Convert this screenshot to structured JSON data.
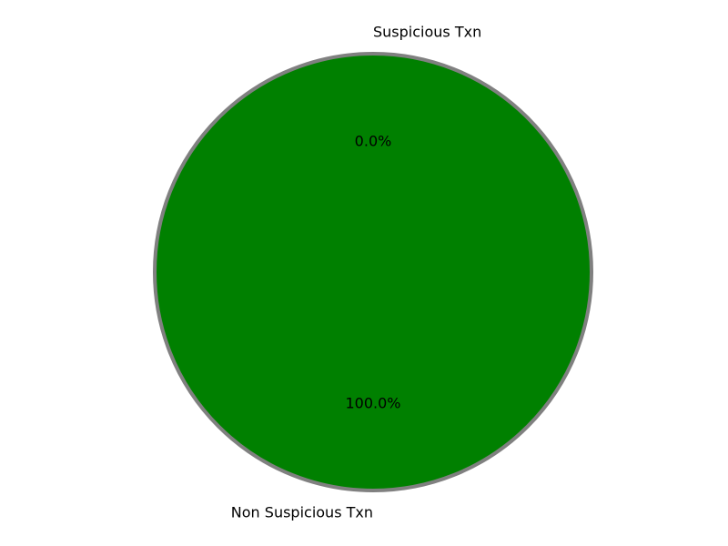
{
  "chart_data": {
    "type": "pie",
    "title": "",
    "slices": [
      {
        "label": "Suspicious Txn",
        "value": 0.0,
        "pct_label": "0.0%",
        "color": "#ff0000"
      },
      {
        "label": "Non Suspicious Txn",
        "value": 100.0,
        "pct_label": "100.0%",
        "color": "#008000"
      }
    ],
    "edge_color": "#808080",
    "start_angle_deg": 90,
    "direction": "counterclockwise"
  }
}
